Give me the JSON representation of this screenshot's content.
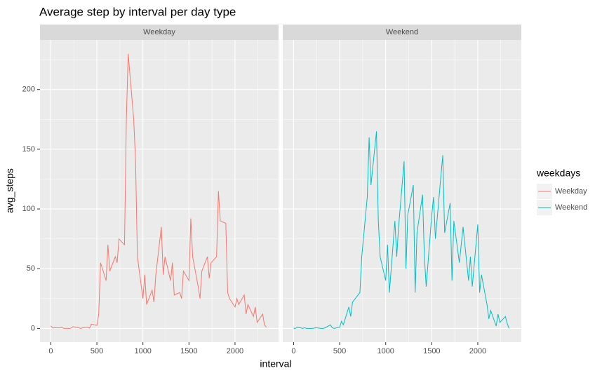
{
  "chart_data": {
    "type": "line",
    "facet": true,
    "title": "Average step by interval per day type",
    "x_label": "interval",
    "y_label": "avg_steps",
    "legend_title": "weekdays",
    "legend": "right",
    "x": [
      0,
      20,
      40,
      100,
      120,
      140,
      200,
      220,
      240,
      300,
      320,
      340,
      400,
      420,
      440,
      500,
      520,
      540,
      600,
      620,
      640,
      700,
      720,
      740,
      800,
      820,
      840,
      900,
      920,
      940,
      1000,
      1020,
      1040,
      1100,
      1120,
      1140,
      1200,
      1220,
      1240,
      1300,
      1320,
      1340,
      1400,
      1420,
      1440,
      1500,
      1520,
      1540,
      1600,
      1620,
      1640,
      1700,
      1720,
      1740,
      1800,
      1820,
      1840,
      1900,
      1920,
      1940,
      2000,
      2020,
      2040,
      2100,
      2120,
      2140,
      2200,
      2220,
      2240,
      2300,
      2320,
      2340
    ],
    "series": [
      {
        "name": "Weekday",
        "color": "#f8766d",
        "values": [
          2.2,
          0.3,
          0.5,
          0.4,
          0.8,
          0.1,
          0,
          0.2,
          1.5,
          0.6,
          0,
          0.3,
          1.1,
          0.2,
          3.6,
          2.5,
          12,
          55,
          40,
          70,
          48,
          60,
          55,
          75,
          70,
          175,
          230,
          175,
          140,
          60,
          25,
          45,
          20,
          32,
          22,
          45,
          85,
          45,
          60,
          40,
          55,
          28,
          30,
          25,
          48,
          40,
          92,
          60,
          35,
          25,
          48,
          60,
          42,
          55,
          60,
          115,
          90,
          88,
          30,
          25,
          18,
          25,
          20,
          28,
          12,
          20,
          10,
          18,
          5,
          12,
          3,
          1
        ]
      },
      {
        "name": "Weekend",
        "color": "#00bfc4",
        "values": [
          0.2,
          0,
          1,
          0,
          0.5,
          0,
          0,
          0.2,
          0.5,
          0,
          0,
          0.4,
          3,
          0.5,
          0,
          1,
          6,
          3,
          18,
          10,
          22,
          28,
          30,
          60,
          110,
          160,
          120,
          165,
          90,
          60,
          40,
          70,
          30,
          90,
          60,
          85,
          140,
          50,
          95,
          120,
          30,
          80,
          112,
          60,
          35,
          95,
          110,
          75,
          128,
          145,
          80,
          105,
          40,
          90,
          55,
          70,
          85,
          40,
          60,
          35,
          87,
          30,
          45,
          20,
          8,
          15,
          2,
          12,
          5,
          10,
          4,
          0
        ]
      }
    ],
    "xlim": [
      -117.75,
      2472.75
    ],
    "xticks": [
      0,
      500,
      1000,
      1500,
      2000
    ],
    "xminor": [
      250,
      750,
      1250,
      1750,
      2250
    ],
    "ylim": [
      -11.5,
      241.5
    ],
    "yticks": [
      0,
      50,
      100,
      150,
      200
    ],
    "yminor": [
      25,
      75,
      125,
      175,
      225
    ],
    "grid": true
  }
}
